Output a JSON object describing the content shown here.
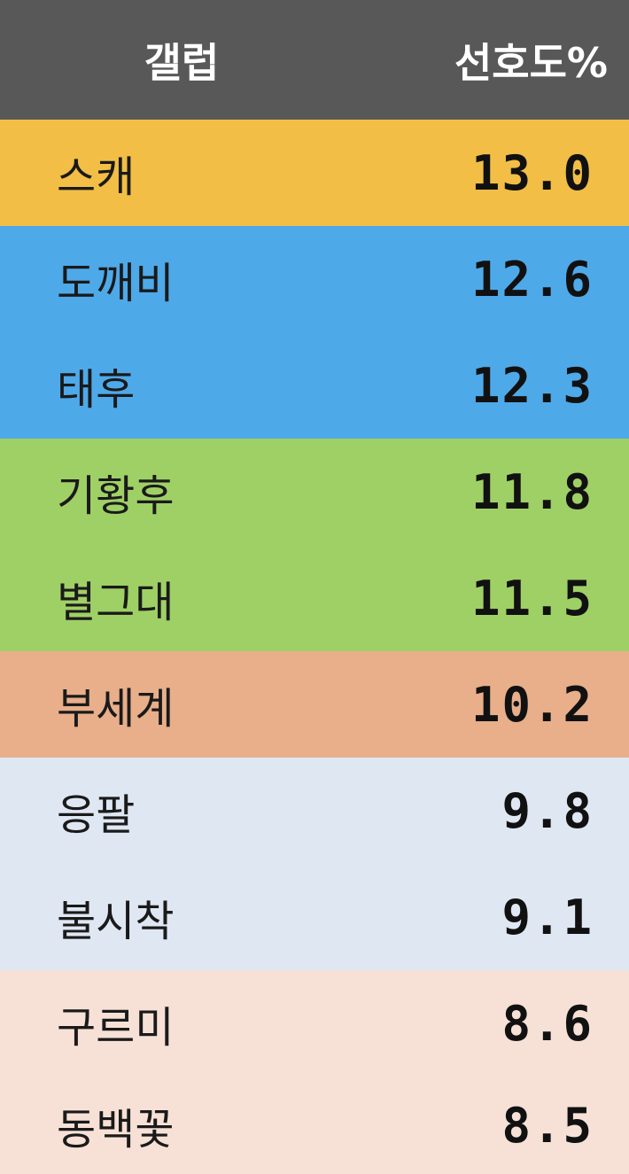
{
  "table": {
    "header": [
      "갤럽",
      "선호도%"
    ],
    "header_color": "#585858",
    "rows": [
      {
        "cells": [
          "스캐",
          "13.0"
        ],
        "color": "#f2be45"
      },
      {
        "cells": [
          "도깨비",
          "12.6"
        ],
        "color": "#4ea9e9"
      },
      {
        "cells": [
          "태후",
          "12.3"
        ],
        "color": "#4ea9e9"
      },
      {
        "cells": [
          "기황후",
          "11.8"
        ],
        "color": "#9fd066"
      },
      {
        "cells": [
          "별그대",
          "11.5"
        ],
        "color": "#9fd066"
      },
      {
        "cells": [
          "부세계",
          "10.2"
        ],
        "color": "#e8af8a"
      },
      {
        "cells": [
          "응팔",
          "9.8"
        ],
        "color": "#dfe7f3"
      },
      {
        "cells": [
          "불시착",
          "9.1"
        ],
        "color": "#dfe7f3"
      },
      {
        "cells": [
          "구르미",
          "8.6"
        ],
        "color": "#f7e1d6"
      },
      {
        "cells": [
          "동백꽃",
          "8.5"
        ],
        "color": "#f7e1d6"
      }
    ]
  }
}
